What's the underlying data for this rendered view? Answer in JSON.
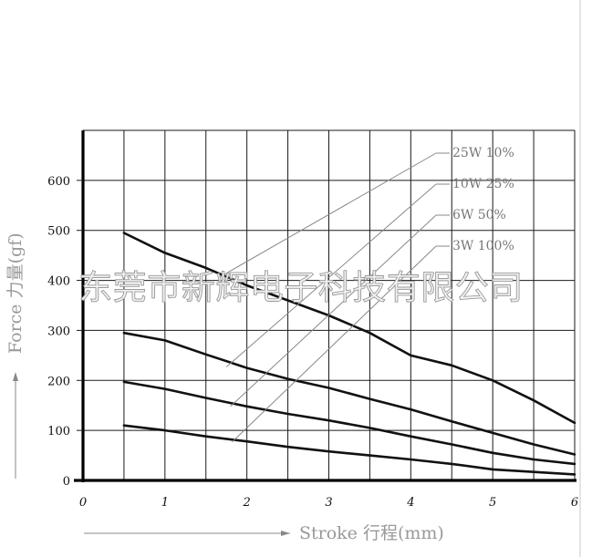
{
  "chart_data": {
    "type": "line",
    "xlabel": "Stroke 行程(mm)",
    "ylabel": "Force 力量(gf)",
    "xlim": [
      0,
      6
    ],
    "ylim": [
      0,
      700
    ],
    "x_ticks": [
      "0",
      "1",
      "2",
      "3",
      "4",
      "5",
      "6"
    ],
    "y_ticks": [
      "0",
      "100",
      "200",
      "300",
      "400",
      "500",
      "600"
    ],
    "grid": true,
    "watermark": "东莞市新辉电子科技有限公司",
    "series": [
      {
        "name": "25W 10%",
        "x": [
          0.5,
          1,
          1.5,
          2,
          2.5,
          3,
          3.5,
          4,
          4.5,
          5,
          5.5,
          6
        ],
        "y": [
          495,
          455,
          425,
          390,
          360,
          330,
          295,
          250,
          230,
          200,
          160,
          115
        ]
      },
      {
        "name": "10W 25%",
        "x": [
          0.5,
          1,
          1.5,
          2,
          2.5,
          3,
          3.5,
          4,
          4.5,
          5,
          5.5,
          6
        ],
        "y": [
          295,
          280,
          252,
          225,
          203,
          185,
          163,
          142,
          118,
          95,
          72,
          52
        ]
      },
      {
        "name": "6W 50%",
        "x": [
          0.5,
          1,
          1.5,
          2,
          2.5,
          3,
          3.5,
          4,
          4.5,
          5,
          5.5,
          6
        ],
        "y": [
          197,
          183,
          165,
          148,
          133,
          120,
          105,
          88,
          72,
          55,
          42,
          33
        ]
      },
      {
        "name": "3W 100%",
        "x": [
          0.5,
          1,
          1.5,
          2,
          2.5,
          3,
          3.5,
          4,
          4.5,
          5,
          5.5,
          6
        ],
        "y": [
          110,
          100,
          88,
          78,
          67,
          58,
          50,
          42,
          33,
          22,
          17,
          12
        ]
      }
    ]
  }
}
